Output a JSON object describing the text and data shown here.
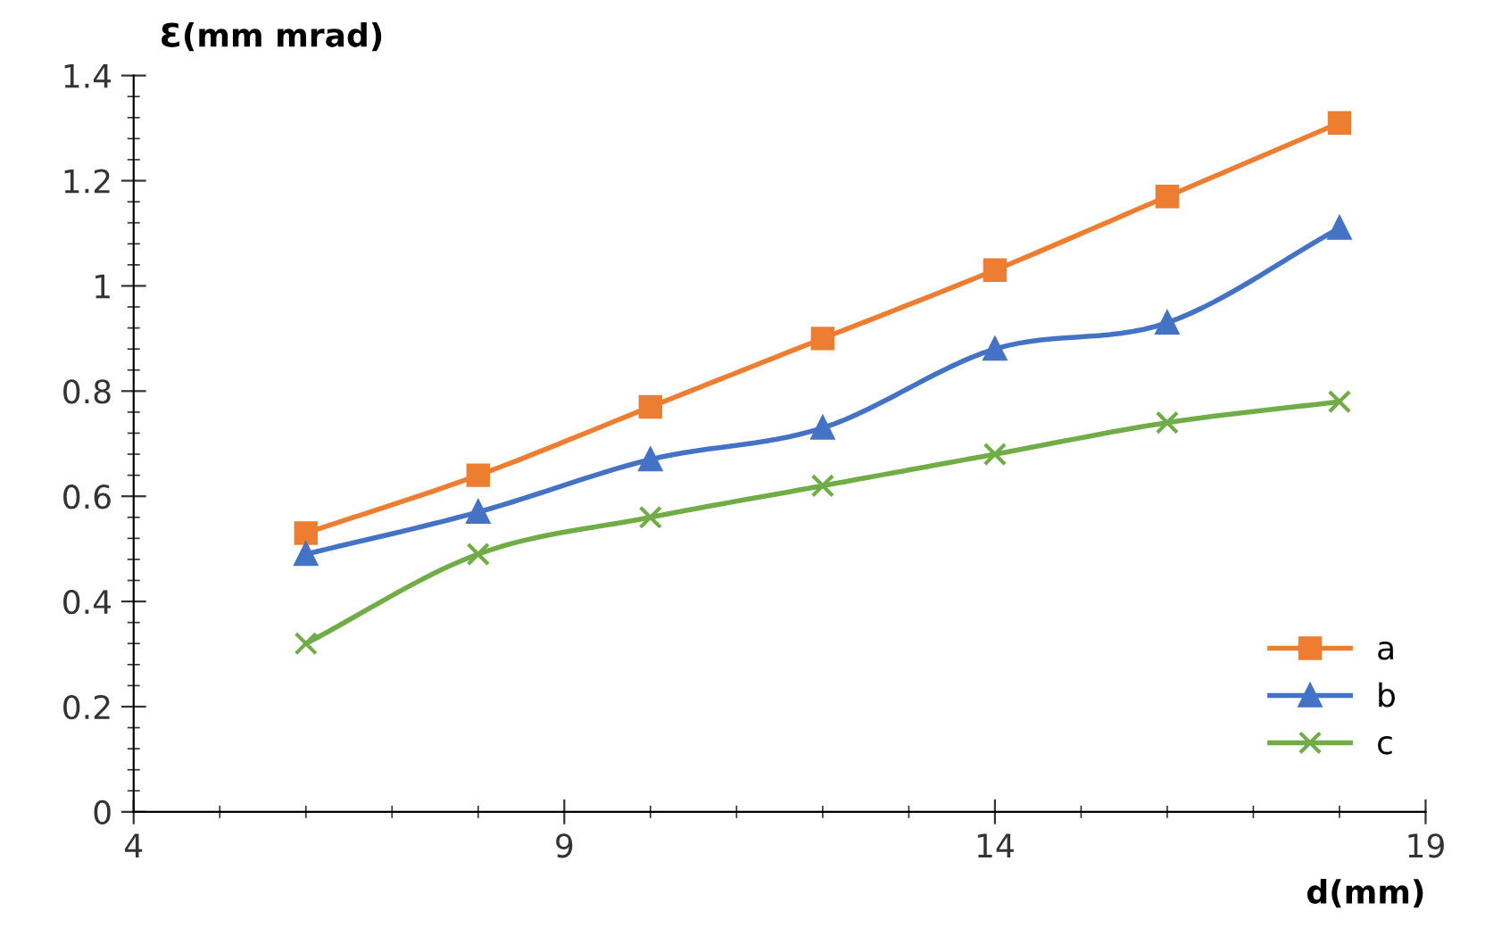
{
  "chart_data": {
    "type": "line",
    "xlabel": "d(mm)",
    "ylabel": "Ɛ(mm mrad)",
    "x": [
      6,
      8,
      10,
      12,
      14,
      16,
      18
    ],
    "series": [
      {
        "name": "a",
        "color": "#ed7d31",
        "marker": "square",
        "values": [
          0.53,
          0.64,
          0.77,
          0.9,
          1.03,
          1.17,
          1.31
        ]
      },
      {
        "name": "b",
        "color": "#4472c4",
        "marker": "triangle",
        "values": [
          0.49,
          0.57,
          0.67,
          0.73,
          0.88,
          0.93,
          1.11
        ]
      },
      {
        "name": "c",
        "color": "#70ad47",
        "marker": "cross",
        "values": [
          0.32,
          0.49,
          0.56,
          0.62,
          0.68,
          0.74,
          0.78
        ]
      }
    ],
    "xlim": [
      4,
      19
    ],
    "xticks": [
      4,
      9,
      14,
      19
    ],
    "ylim": [
      0,
      1.4
    ],
    "yticks": [
      0,
      0.2,
      0.4,
      0.6,
      0.8,
      1,
      1.2,
      1.4
    ],
    "grid": false,
    "legend": "bottom right"
  }
}
